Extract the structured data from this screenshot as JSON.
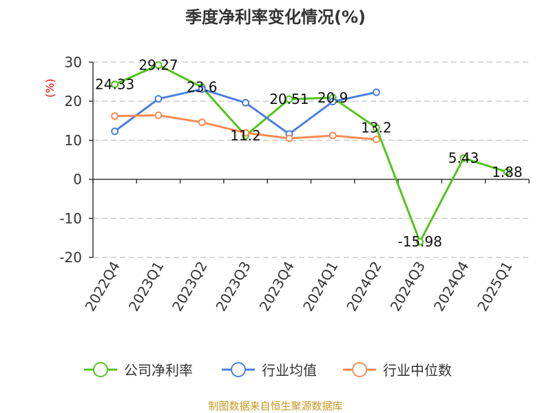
{
  "chart_data": {
    "type": "line",
    "title": "季度净利率变化情况(%)",
    "ylabel": "(%)",
    "xlabel": "",
    "ylim": [
      -20,
      30
    ],
    "yticks": [
      30,
      20,
      10,
      0,
      -10,
      -20
    ],
    "grid": true,
    "legend_position": "bottom",
    "categories": [
      "2022Q4",
      "2023Q1",
      "2023Q2",
      "2023Q3",
      "2023Q4",
      "2024Q1",
      "2024Q2",
      "2024Q3",
      "2024Q4",
      "2025Q1"
    ],
    "series": [
      {
        "name": "公司净利率",
        "color": "#52c41a",
        "labels": true,
        "values": [
          24.33,
          29.27,
          23.6,
          11.2,
          20.51,
          20.9,
          13.2,
          -15.98,
          5.43,
          1.88
        ]
      },
      {
        "name": "行业均值",
        "color": "#4a7ee0",
        "labels": false,
        "values": [
          12.3,
          20.6,
          23.1,
          19.6,
          11.6,
          19.9,
          22.3,
          null,
          null,
          null
        ]
      },
      {
        "name": "行业中位数",
        "color": "#fd8a54",
        "labels": false,
        "values": [
          16.2,
          16.4,
          14.6,
          11.9,
          10.5,
          11.2,
          10.2,
          null,
          null,
          null
        ]
      }
    ]
  },
  "source": "制图数据来自恒生聚源数据库"
}
